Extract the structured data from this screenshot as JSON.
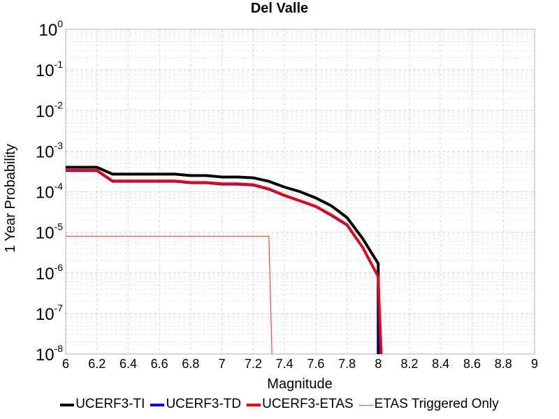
{
  "chart_data": {
    "type": "line",
    "title": "Del Valle",
    "xlabel": "Magnitude",
    "ylabel": "1 Year Probability",
    "xlim": [
      6,
      9
    ],
    "ylim": [
      1e-08,
      1
    ],
    "yscale": "log",
    "grid": true,
    "legend_position": "bottom",
    "x_ticks": [
      "6",
      "6.2",
      "6.4",
      "6.6",
      "6.8",
      "7",
      "7.2",
      "7.4",
      "7.6",
      "7.8",
      "8",
      "8.2",
      "8.4",
      "8.6",
      "8.8",
      "9"
    ],
    "y_tick_exponents": [
      "0",
      "-1",
      "-2",
      "-3",
      "-4",
      "-5",
      "-6",
      "-7",
      "-8"
    ],
    "series": [
      {
        "name": "UCERF3-TI",
        "color": "#000000",
        "x": [
          6.0,
          6.2,
          6.3,
          6.4,
          6.5,
          6.6,
          6.7,
          6.8,
          6.9,
          7.0,
          7.1,
          7.2,
          7.3,
          7.4,
          7.5,
          7.6,
          7.7,
          7.8,
          7.9,
          8.0,
          8.0
        ],
        "y": [
          0.0004,
          0.0004,
          0.00027,
          0.00027,
          0.00027,
          0.00027,
          0.00027,
          0.00025,
          0.00025,
          0.00023,
          0.00023,
          0.00022,
          0.00018,
          0.00013,
          0.0001,
          7e-05,
          4.5e-05,
          2.3e-05,
          7e-06,
          1.7e-06,
          1e-08
        ]
      },
      {
        "name": "UCERF3-TD",
        "color": "#0000ff",
        "x": [
          6.0,
          6.2,
          6.3,
          6.4,
          6.5,
          6.6,
          6.7,
          6.8,
          6.9,
          7.0,
          7.1,
          7.2,
          7.3,
          7.4,
          7.5,
          7.6,
          7.7,
          7.8,
          7.9,
          8.0,
          8.01
        ],
        "y": [
          0.00033,
          0.00033,
          0.00018,
          0.00018,
          0.00018,
          0.00018,
          0.00018,
          0.000165,
          0.000165,
          0.000152,
          0.000152,
          0.000145,
          0.000115,
          8e-05,
          5.9e-05,
          4.3e-05,
          2.6e-05,
          1.5e-05,
          4.2e-06,
          8e-07,
          1e-08
        ]
      },
      {
        "name": "UCERF3-ETAS",
        "color": "#ff0000",
        "x": [
          6.0,
          6.2,
          6.3,
          6.4,
          6.5,
          6.6,
          6.7,
          6.8,
          6.9,
          7.0,
          7.1,
          7.2,
          7.3,
          7.4,
          7.5,
          7.6,
          7.7,
          7.8,
          7.9,
          8.0,
          8.02
        ],
        "y": [
          0.00034,
          0.00034,
          0.000185,
          0.000185,
          0.000185,
          0.000185,
          0.000185,
          0.00017,
          0.00017,
          0.000158,
          0.000158,
          0.00015,
          0.000118,
          8.2e-05,
          6e-05,
          4.4e-05,
          2.7e-05,
          1.55e-05,
          4.3e-06,
          8.2e-07,
          1e-08
        ]
      },
      {
        "name": "ETAS Triggered Only",
        "color": "#ff4040",
        "x": [
          6.0,
          7.3,
          7.32
        ],
        "y": [
          8e-06,
          8e-06,
          1e-08
        ]
      }
    ]
  }
}
